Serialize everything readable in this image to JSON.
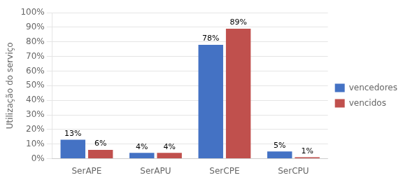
{
  "chart_data": {
    "type": "bar",
    "categories": [
      "SerAPE",
      "SerAPU",
      "SerCPE",
      "SerCPU"
    ],
    "series": [
      {
        "name": "vencedores",
        "color": "#4472C4",
        "values": [
          13,
          4,
          78,
          5
        ],
        "value_labels": [
          "13%",
          "4%",
          "78%",
          "5%"
        ]
      },
      {
        "name": "vencidos",
        "color": "#C0504D",
        "values": [
          6,
          4,
          89,
          1
        ],
        "value_labels": [
          "6%",
          "4%",
          "89%",
          "1%"
        ]
      }
    ],
    "ylabel": "Utilização do serviço",
    "ylim": [
      0,
      100
    ],
    "yticks": [
      {
        "value": 0,
        "label": "0%"
      },
      {
        "value": 10,
        "label": "10%"
      },
      {
        "value": 20,
        "label": "20%"
      },
      {
        "value": 30,
        "label": "30%"
      },
      {
        "value": 40,
        "label": "40%"
      },
      {
        "value": 50,
        "label": "50%"
      },
      {
        "value": 60,
        "label": "60%"
      },
      {
        "value": 70,
        "label": "70%"
      },
      {
        "value": 80,
        "label": "80%"
      },
      {
        "value": 90,
        "label": "90%"
      },
      {
        "value": 100,
        "label": "100%"
      }
    ],
    "grid": true,
    "legend": "right",
    "data_labels": true
  }
}
